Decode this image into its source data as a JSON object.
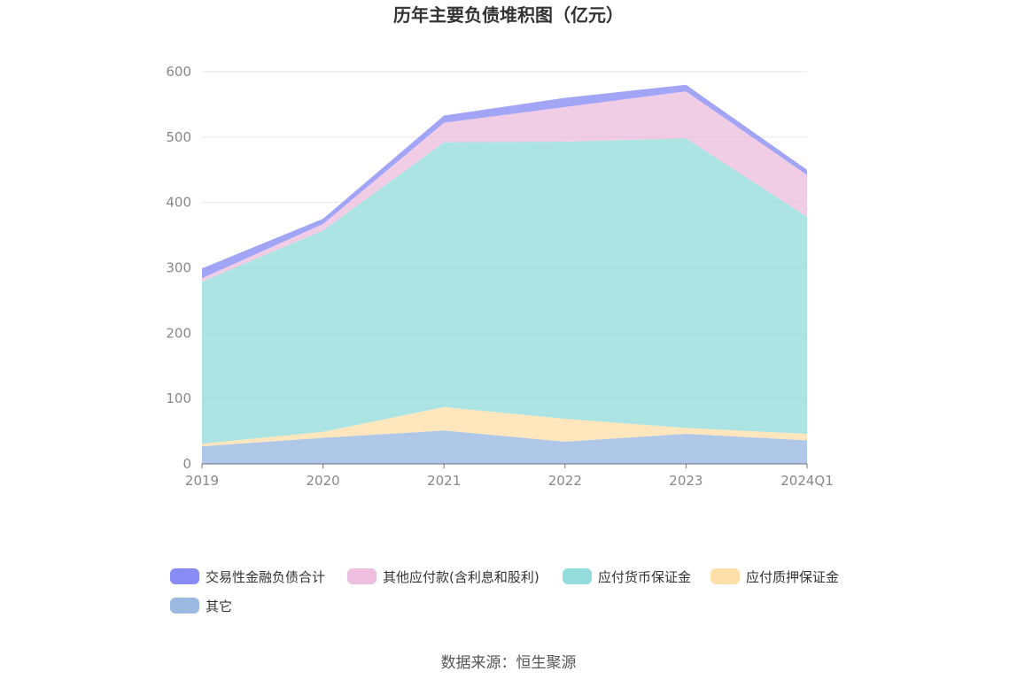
{
  "chart_data": {
    "type": "area",
    "stacked": true,
    "title": "历年主要负债堆积图（亿元）",
    "xlabel": "",
    "ylabel": "",
    "x": [
      "2019",
      "2020",
      "2021",
      "2022",
      "2023",
      "2024Q1"
    ],
    "ylim": [
      0,
      600
    ],
    "yticks": [
      0,
      100,
      200,
      300,
      400,
      500,
      600
    ],
    "grid": true,
    "legend_position": "bottom",
    "series": [
      {
        "name": "其它",
        "color": "#8fb0dd",
        "values": [
          27,
          40,
          51,
          34,
          46,
          36
        ]
      },
      {
        "name": "应付质押保证金",
        "color": "#ffdba0",
        "values": [
          4,
          9,
          36,
          35,
          9,
          10
        ]
      },
      {
        "name": "应付货币保证金",
        "color": "#89d8d8",
        "values": [
          248,
          308,
          405,
          424,
          443,
          332
        ]
      },
      {
        "name": "其他应付款(含利息和股利)",
        "color": "#ebb7da",
        "values": [
          5,
          10,
          30,
          53,
          72,
          64
        ]
      },
      {
        "name": "交易性金融负债合计",
        "color": "#7b7ef2",
        "values": [
          15,
          8,
          11,
          14,
          10,
          8
        ]
      }
    ],
    "legend_order": [
      "交易性金融负债合计",
      "其他应付款(含利息和股利)",
      "应付货币保证金",
      "应付质押保证金",
      "其它"
    ]
  },
  "footer": {
    "source": "数据来源：恒生聚源"
  }
}
